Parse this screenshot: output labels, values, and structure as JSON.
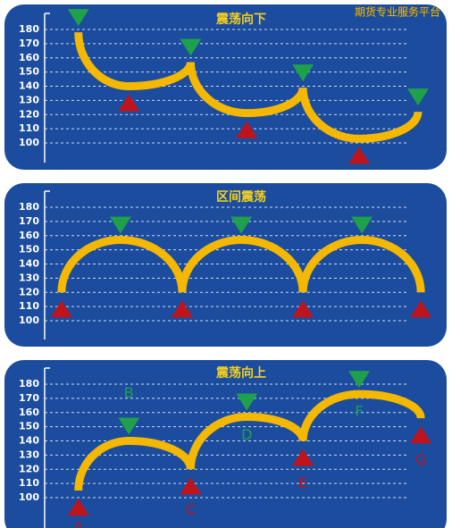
{
  "watermark": "期货专业服务平台",
  "chart_data": [
    {
      "type": "line",
      "title": "震荡向下",
      "cusp": "high",
      "x": [
        0,
        0.9,
        2,
        3,
        4,
        5,
        6.05
      ],
      "xlim": [
        -0.6,
        6.4
      ],
      "series": [
        {
          "color": "#f5b800",
          "values": [
            178,
            140,
            157,
            121,
            139,
            103,
            122
          ]
        }
      ],
      "ylim": [
        100,
        180
      ],
      "yticks": [
        100,
        110,
        120,
        130,
        140,
        150,
        160,
        170,
        180
      ],
      "grid": true,
      "high_color": "#1fa04a",
      "low_color": "#c0141c"
    },
    {
      "type": "line",
      "title": "区间震荡",
      "cusp": "low",
      "x": [
        -0.3,
        0.75,
        1.85,
        2.9,
        4,
        5.05,
        6.1
      ],
      "xlim": [
        -0.6,
        6.4
      ],
      "series": [
        {
          "color": "#f5b800",
          "values": [
            120,
            157,
            120,
            157,
            120,
            157,
            120
          ]
        }
      ],
      "ylim": [
        100,
        180
      ],
      "yticks": [
        100,
        110,
        120,
        130,
        140,
        150,
        160,
        170,
        180
      ],
      "grid": true,
      "high_color": "#1fa04a",
      "low_color": "#c0141c"
    },
    {
      "type": "line",
      "title": "震荡向上",
      "cusp": "low",
      "x": [
        0,
        0.9,
        2,
        3,
        4,
        5,
        6.1
      ],
      "xlim": [
        -0.6,
        6.4
      ],
      "series": [
        {
          "color": "#f5b800",
          "values": [
            105,
            140,
            120,
            157,
            140,
            173,
            156
          ],
          "point_labels": [
            "A",
            "B",
            "C",
            "D",
            "E",
            "F",
            "G"
          ]
        }
      ],
      "ylim": [
        100,
        180
      ],
      "yticks": [
        100,
        110,
        120,
        130,
        140,
        150,
        160,
        170,
        180
      ],
      "grid": true,
      "high_color": "#1fa04a",
      "low_color": "#c0141c"
    }
  ]
}
